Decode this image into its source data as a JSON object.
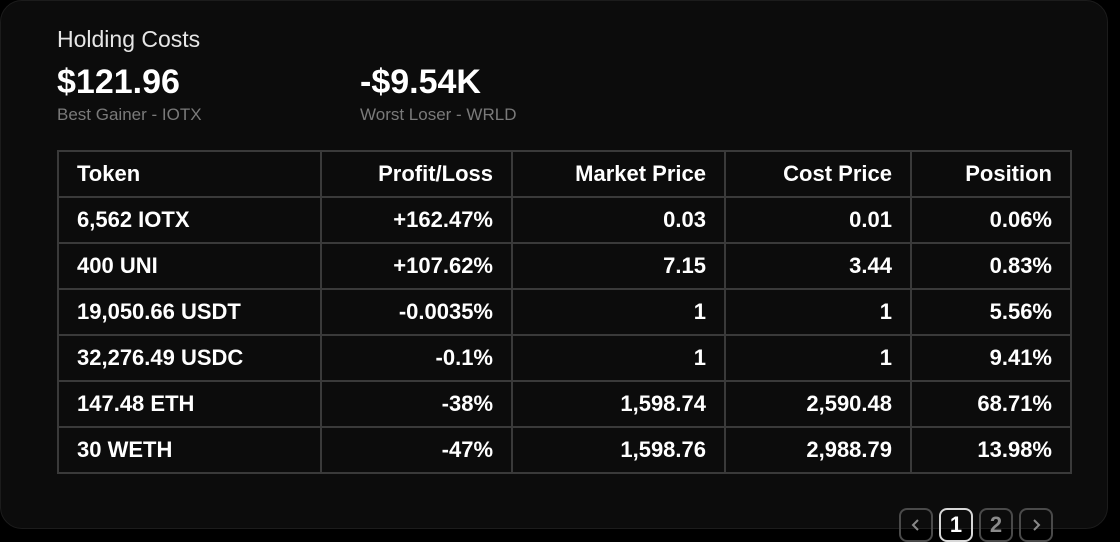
{
  "header": {
    "title": "Holding Costs"
  },
  "best": {
    "value": "$121.96",
    "caption": "Best Gainer - IOTX"
  },
  "worst": {
    "value": "-$9.54K",
    "caption": "Worst Loser - WRLD"
  },
  "table": {
    "columns": [
      "Token",
      "Profit/Loss",
      "Market Price",
      "Cost Price",
      "Position"
    ],
    "rows": [
      [
        "6,562 IOTX",
        "+162.47%",
        "0.03",
        "0.01",
        "0.06%"
      ],
      [
        "400 UNI",
        "+107.62%",
        "7.15",
        "3.44",
        "0.83%"
      ],
      [
        "19,050.66 USDT",
        "-0.0035%",
        "1",
        "1",
        "5.56%"
      ],
      [
        "32,276.49 USDC",
        "-0.1%",
        "1",
        "1",
        "9.41%"
      ],
      [
        "147.48 ETH",
        "-38%",
        "1,598.74",
        "2,590.48",
        "68.71%"
      ],
      [
        "30 WETH",
        "-47%",
        "1,598.76",
        "2,988.79",
        "13.98%"
      ]
    ]
  },
  "pagination": {
    "prev_icon": "chevron-left-icon",
    "pages": [
      "1",
      "2"
    ],
    "current_page": "1",
    "next_icon": "chevron-right-icon"
  },
  "colors": {
    "background": "#000000",
    "card": "#0c0c0c",
    "border": "#3a3a3a",
    "caption": "#7a7a7a"
  }
}
